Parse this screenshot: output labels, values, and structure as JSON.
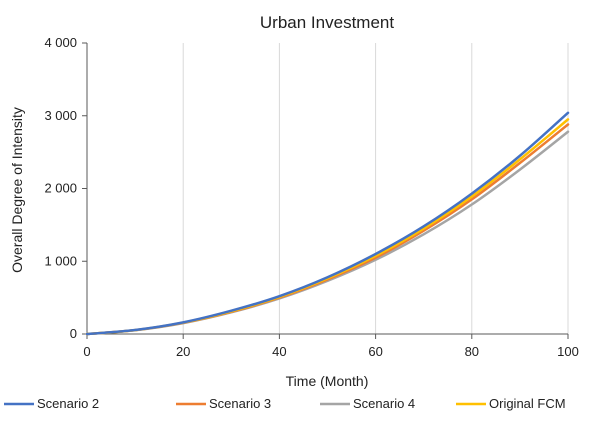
{
  "chart_data": {
    "type": "line",
    "title": "Urban Investment",
    "xlabel": "Time (Month)",
    "ylabel": "Overall Degree of Intensity",
    "xlim": [
      0,
      100
    ],
    "ylim": [
      0,
      4000
    ],
    "x_ticks": [
      0,
      20,
      40,
      60,
      80,
      100
    ],
    "y_ticks": [
      0,
      1000,
      2000,
      3000,
      4000
    ],
    "x_tick_labels": [
      "0",
      "20",
      "40",
      "60",
      "80",
      "100"
    ],
    "y_tick_labels": [
      "0",
      "1 000",
      "2 000",
      "3 000",
      "4 000"
    ],
    "grid": "vertical",
    "legend_position": "bottom",
    "x": [
      0,
      10,
      20,
      30,
      40,
      50,
      60,
      70,
      80,
      90,
      100
    ],
    "series": [
      {
        "name": "Scenario 2",
        "color": "#4472C4",
        "values": [
          0,
          55,
          160,
          320,
          520,
          780,
          1100,
          1480,
          1930,
          2450,
          3040
        ]
      },
      {
        "name": "Scenario 3",
        "color": "#ED7D31",
        "values": [
          0,
          53,
          154,
          305,
          500,
          750,
          1050,
          1420,
          1850,
          2350,
          2880
        ]
      },
      {
        "name": "Scenario 4",
        "color": "#A5A5A5",
        "values": [
          0,
          52,
          150,
          298,
          488,
          730,
          1020,
          1370,
          1780,
          2260,
          2780
        ]
      },
      {
        "name": "Original FCM",
        "color": "#FFC000",
        "values": [
          0,
          54,
          157,
          312,
          510,
          765,
          1075,
          1450,
          1890,
          2400,
          2950
        ]
      }
    ]
  }
}
